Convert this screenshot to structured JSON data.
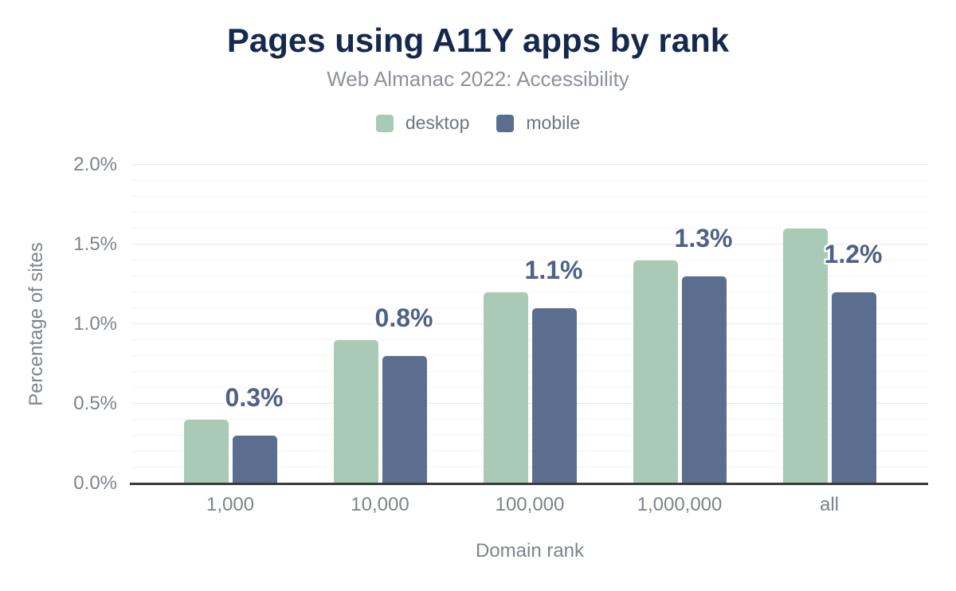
{
  "chart_data": {
    "type": "bar",
    "title": "Pages using A11Y apps by rank",
    "subtitle": "Web Almanac 2022: Accessibility",
    "xlabel": "Domain rank",
    "ylabel": "Percentage of sites",
    "categories": [
      "1,000",
      "10,000",
      "100,000",
      "1,000,000",
      "all"
    ],
    "series": [
      {
        "name": "desktop",
        "color": "#a8cab6",
        "values": [
          0.4,
          0.9,
          1.2,
          1.4,
          1.6
        ]
      },
      {
        "name": "mobile",
        "color": "#5c6e90",
        "values": [
          0.3,
          0.8,
          1.1,
          1.3,
          1.2
        ]
      }
    ],
    "bar_labels": [
      "0.3%",
      "0.8%",
      "1.1%",
      "1.3%",
      "1.2%"
    ],
    "bar_labels_series": "mobile",
    "ylim": [
      0,
      2.0
    ],
    "y_major_ticks": [
      "0.0%",
      "0.5%",
      "1.0%",
      "1.5%",
      "2.0%"
    ],
    "y_major_step": 0.5,
    "y_minor_step": 0.1,
    "grid": "horizontal",
    "legend_position": "top"
  },
  "colors": {
    "title": "#15294e",
    "subtitle": "#8d9299",
    "axis_text": "#7d838c",
    "data_label": "#4d6286",
    "axis_line": "#3a3a3a",
    "grid_major": "#e6e6e6",
    "grid_minor": "#f5f5f5",
    "background": "#ffffff"
  }
}
